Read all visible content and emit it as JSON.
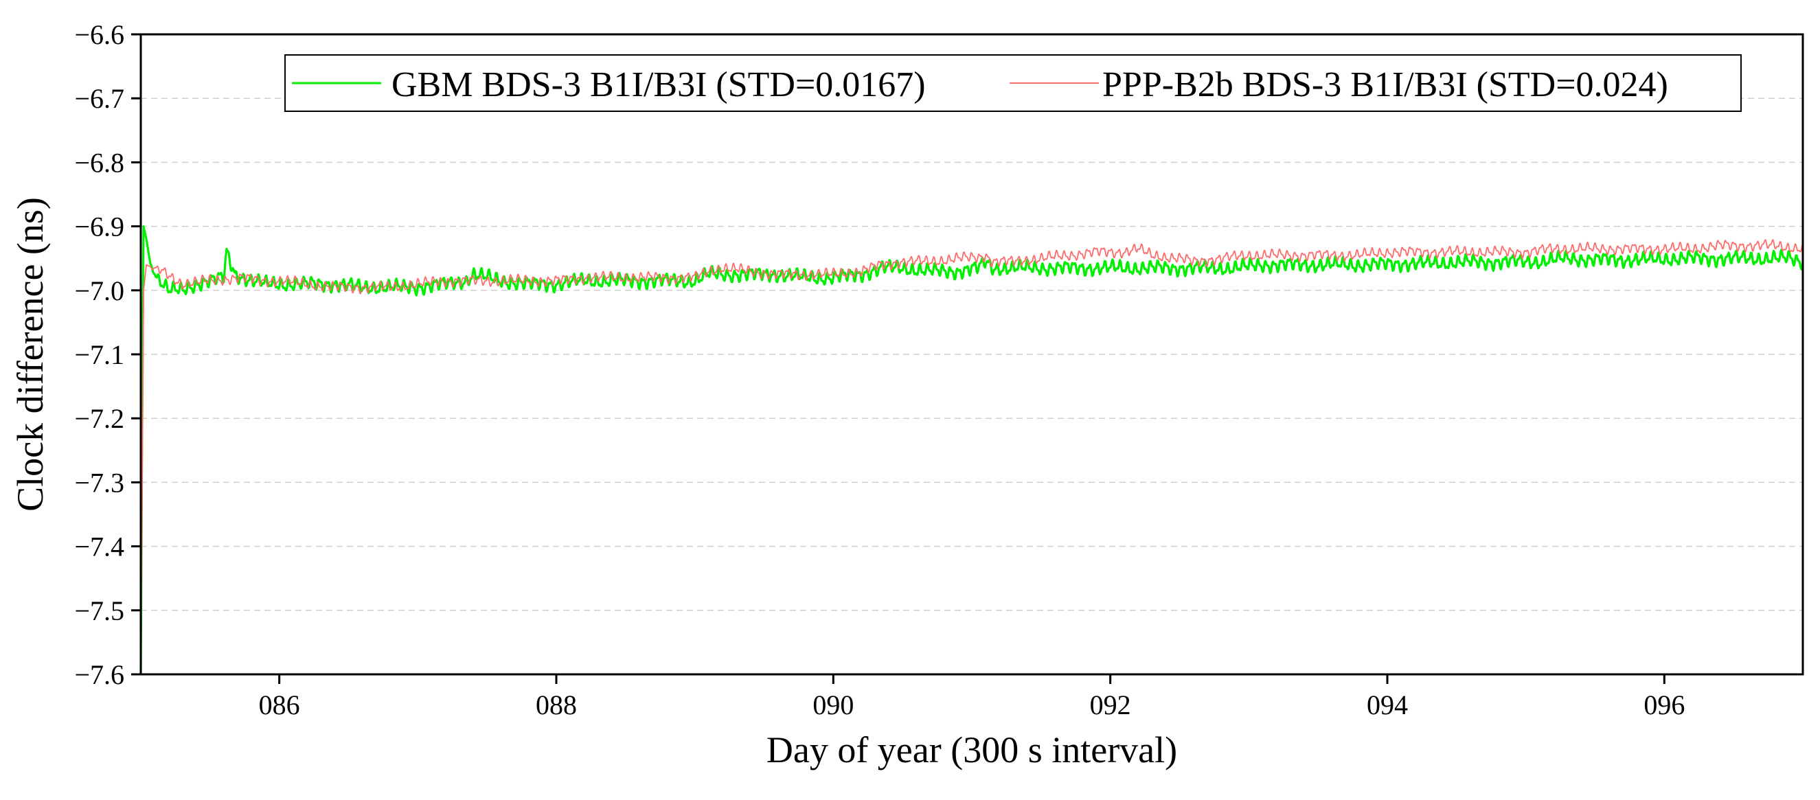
{
  "chart_data": {
    "type": "line",
    "title": "",
    "xlabel": "Day of year (300 s interval)",
    "ylabel": "Clock difference (ns)",
    "xlim": [
      85,
      97
    ],
    "ylim": [
      -7.6,
      -6.6
    ],
    "x_ticks": [
      86,
      88,
      90,
      92,
      94,
      96
    ],
    "x_tick_labels": [
      "086",
      "088",
      "090",
      "092",
      "094",
      "096"
    ],
    "y_ticks": [
      -7.6,
      -7.5,
      -7.4,
      -7.3,
      -7.2,
      -7.1,
      -7.0,
      -6.9,
      -6.8,
      -6.7,
      -6.6
    ],
    "y_tick_labels": [
      "−7.6",
      "−7.5",
      "−7.4",
      "−7.3",
      "−7.2",
      "−7.1",
      "−7.0",
      "−6.9",
      "−6.8",
      "−6.7",
      "−6.6"
    ],
    "grid": "horizontal dashed",
    "legend_position": "top",
    "series": [
      {
        "name": "GBM BDS-3 B1I/B3I (STD=0.0167)",
        "color": "#00ee00",
        "x": [
          85.0,
          85.01,
          85.02,
          85.04,
          85.07,
          85.12,
          85.2,
          85.3,
          85.4,
          85.5,
          85.6,
          85.62,
          85.68,
          85.8,
          85.9,
          86.0,
          86.2,
          86.4,
          86.6,
          86.8,
          87.0,
          87.2,
          87.35,
          87.4,
          87.6,
          87.8,
          88.0,
          88.2,
          88.4,
          88.6,
          88.8,
          89.0,
          89.1,
          89.2,
          89.4,
          89.6,
          89.8,
          90.0,
          90.2,
          90.35,
          90.5,
          90.7,
          90.9,
          91.05,
          91.1,
          91.15,
          91.3,
          91.5,
          91.7,
          91.9,
          92.1,
          92.3,
          92.5,
          92.7,
          92.9,
          93.1,
          93.3,
          93.5,
          93.7,
          93.9,
          94.1,
          94.3,
          94.5,
          94.7,
          94.9,
          95.1,
          95.3,
          95.5,
          95.7,
          95.9,
          96.1,
          96.3,
          96.5,
          96.7,
          96.9,
          97.0
        ],
        "values": [
          -7.6,
          -7.2,
          -6.9,
          -6.92,
          -6.96,
          -6.98,
          -7.0,
          -7.0,
          -6.99,
          -6.985,
          -6.98,
          -6.94,
          -6.975,
          -6.985,
          -6.99,
          -6.99,
          -6.99,
          -6.99,
          -6.995,
          -6.995,
          -6.995,
          -6.99,
          -6.985,
          -6.975,
          -6.985,
          -6.99,
          -6.99,
          -6.985,
          -6.985,
          -6.985,
          -6.985,
          -6.985,
          -6.975,
          -6.975,
          -6.975,
          -6.975,
          -6.98,
          -6.98,
          -6.975,
          -6.965,
          -6.965,
          -6.97,
          -6.97,
          -6.965,
          -6.955,
          -6.965,
          -6.965,
          -6.965,
          -6.965,
          -6.965,
          -6.965,
          -6.965,
          -6.965,
          -6.965,
          -6.965,
          -6.96,
          -6.96,
          -6.96,
          -6.96,
          -6.96,
          -6.958,
          -6.958,
          -6.956,
          -6.956,
          -6.955,
          -6.955,
          -6.95,
          -6.952,
          -6.952,
          -6.952,
          -6.95,
          -6.95,
          -6.95,
          -6.95,
          -6.95,
          -6.955
        ],
        "noise_amplitude": 0.012
      },
      {
        "name": "PPP-B2b BDS-3 B1I/B3I (STD=0.024)",
        "color": "#ff6b6b",
        "x": [
          85.0,
          85.01,
          85.02,
          85.04,
          85.08,
          85.15,
          85.3,
          85.5,
          85.7,
          85.9,
          86.0,
          86.2,
          86.4,
          86.6,
          86.8,
          87.0,
          87.2,
          87.4,
          87.6,
          87.8,
          88.0,
          88.2,
          88.4,
          88.6,
          88.8,
          89.0,
          89.1,
          89.2,
          89.4,
          89.6,
          89.8,
          90.0,
          90.2,
          90.35,
          90.5,
          90.7,
          90.9,
          91.05,
          91.1,
          91.15,
          91.3,
          91.5,
          91.7,
          91.9,
          92.1,
          92.2,
          92.3,
          92.5,
          92.6,
          92.8,
          93.0,
          93.2,
          93.4,
          93.6,
          93.8,
          94.0,
          94.2,
          94.4,
          94.6,
          94.8,
          95.0,
          95.2,
          95.4,
          95.6,
          95.8,
          96.0,
          96.2,
          96.4,
          96.6,
          96.8,
          97.0
        ],
        "values": [
          -7.6,
          -7.3,
          -7.0,
          -6.96,
          -6.965,
          -6.97,
          -6.99,
          -6.985,
          -6.98,
          -6.985,
          -6.985,
          -6.99,
          -6.995,
          -6.995,
          -6.995,
          -6.99,
          -6.985,
          -6.985,
          -6.985,
          -6.985,
          -6.985,
          -6.98,
          -6.98,
          -6.98,
          -6.98,
          -6.98,
          -6.97,
          -6.965,
          -6.97,
          -6.975,
          -6.975,
          -6.975,
          -6.97,
          -6.96,
          -6.955,
          -6.955,
          -6.95,
          -6.948,
          -6.945,
          -6.955,
          -6.955,
          -6.95,
          -6.945,
          -6.94,
          -6.94,
          -6.935,
          -6.945,
          -6.95,
          -6.955,
          -6.95,
          -6.945,
          -6.945,
          -6.945,
          -6.945,
          -6.945,
          -6.94,
          -6.94,
          -6.94,
          -6.94,
          -6.94,
          -6.94,
          -6.935,
          -6.935,
          -6.935,
          -6.935,
          -6.935,
          -6.935,
          -6.93,
          -6.93,
          -6.93,
          -6.935
        ],
        "noise_amplitude": 0.009
      }
    ]
  }
}
